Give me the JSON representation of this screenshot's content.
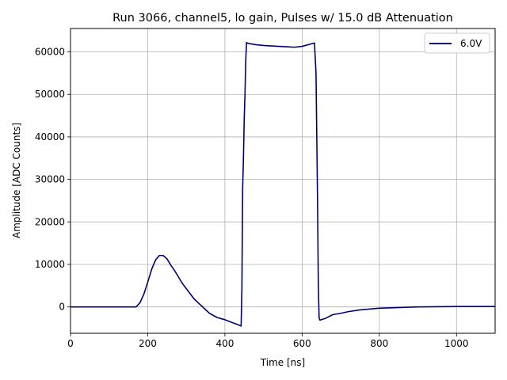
{
  "chart_data": {
    "type": "line",
    "title": "Run 3066, channel5, lo gain, Pulses w/ 15.0 dB Attenuation",
    "xlabel": "Time [ns]",
    "ylabel": "Amplitude [ADC Counts]",
    "xlim": [
      0,
      1100
    ],
    "ylim": [
      -6200,
      65500
    ],
    "xticks": [
      0,
      200,
      400,
      600,
      800,
      1000
    ],
    "yticks": [
      0,
      10000,
      20000,
      30000,
      40000,
      50000,
      60000
    ],
    "grid": true,
    "legend_position": "top-right",
    "series": [
      {
        "name": "6.0V",
        "color": "#00006e",
        "x": [
          0,
          100,
          170,
          180,
          190,
          200,
          210,
          220,
          230,
          240,
          250,
          260,
          270,
          280,
          290,
          300,
          320,
          340,
          360,
          380,
          400,
          420,
          435,
          442,
          444,
          446,
          448,
          450,
          452,
          454,
          456,
          460,
          480,
          500,
          520,
          540,
          560,
          580,
          600,
          620,
          632,
          636,
          638,
          640,
          642,
          644,
          646,
          660,
          680,
          700,
          720,
          750,
          800,
          900,
          1000,
          1100
        ],
        "y": [
          0,
          0,
          0,
          1000,
          3000,
          5800,
          8800,
          11000,
          12100,
          12100,
          11300,
          9800,
          8500,
          7000,
          5500,
          4300,
          1900,
          200,
          -1500,
          -2500,
          -3000,
          -3700,
          -4200,
          -4500,
          4000,
          28000,
          35000,
          44000,
          50000,
          58000,
          62200,
          62000,
          61700,
          61500,
          61400,
          61300,
          61200,
          61100,
          61300,
          61800,
          62100,
          55000,
          40000,
          25000,
          5000,
          -2500,
          -3100,
          -2700,
          -1800,
          -1500,
          -1100,
          -700,
          -300,
          0,
          100,
          100
        ]
      }
    ]
  }
}
